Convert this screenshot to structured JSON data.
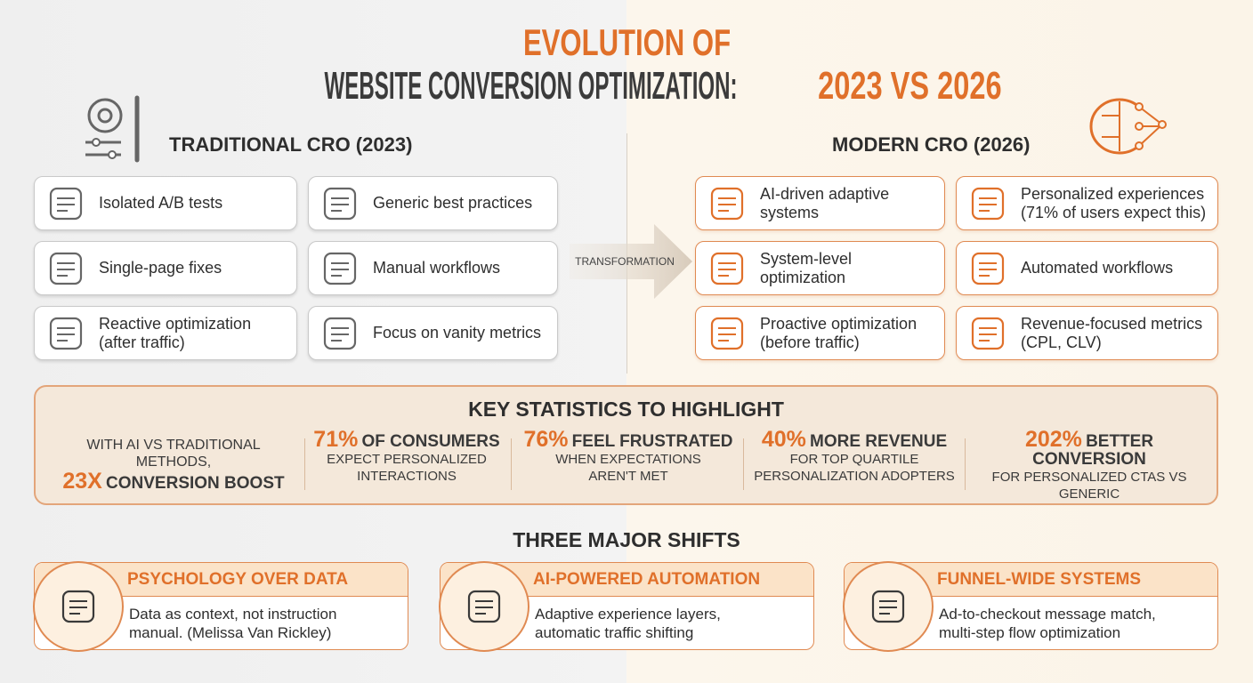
{
  "header": {
    "title_line1": "EVOLUTION OF",
    "title_line2": "WEBSITE CONVERSION OPTIMIZATION:",
    "title_highlight": "2023 VS 2026"
  },
  "traditional": {
    "heading": "TRADITIONAL CRO (2023)",
    "items": [
      {
        "lines": [
          "Isolated A/B tests"
        ]
      },
      {
        "lines": [
          "Generic best practices"
        ]
      },
      {
        "lines": [
          "Single-page fixes"
        ]
      },
      {
        "lines": [
          "Manual workflows"
        ]
      },
      {
        "lines": [
          "Reactive optimization",
          "(after traffic)"
        ]
      },
      {
        "lines": [
          "Focus on vanity metrics"
        ]
      }
    ]
  },
  "transformation": "TRANSFORMATION",
  "modern": {
    "heading": "MODERN CRO (2026)",
    "items": [
      {
        "lines": [
          "AI-driven adaptive",
          "systems"
        ]
      },
      {
        "lines": [
          "Personalized experiences",
          "(71% of users expect this)"
        ]
      },
      {
        "lines": [
          "System-level",
          "optimization"
        ]
      },
      {
        "lines": [
          "Automated workflows"
        ]
      },
      {
        "lines": [
          "Proactive optimization",
          "(before traffic)"
        ]
      },
      {
        "lines": [
          "Revenue-focused metrics",
          "(CPL, CLV)"
        ]
      }
    ]
  },
  "statistics": {
    "heading": "KEY STATISTICS TO HIGHLIGHT",
    "items": [
      {
        "pre": "WITH AI VS TRADITIONAL METHODS,",
        "highlight": "23X",
        "headline": "CONVERSION BOOST",
        "detail": []
      },
      {
        "highlight": "71%",
        "headline": "OF CONSUMERS",
        "detail": [
          "EXPECT PERSONALIZED",
          "INTERACTIONS"
        ]
      },
      {
        "highlight": "76%",
        "headline": "FEEL FRUSTRATED",
        "detail": [
          "WHEN EXPECTATIONS",
          "AREN'T MET"
        ]
      },
      {
        "highlight": "40%",
        "headline": "MORE REVENUE",
        "detail": [
          "FOR TOP QUARTILE",
          "PERSONALIZATION ADOPTERS"
        ]
      },
      {
        "highlight": "202%",
        "headline": "BETTER CONVERSION",
        "detail": [
          "FOR PERSONALIZED CTAS VS",
          "GENERIC"
        ]
      }
    ]
  },
  "shifts": {
    "heading": "THREE MAJOR SHIFTS",
    "items": [
      {
        "title": "PSYCHOLOGY OVER DATA",
        "lines": [
          "Data as context, not instruction",
          "manual. (Melissa Van Rickley)"
        ]
      },
      {
        "title": "AI-POWERED AUTOMATION",
        "lines": [
          "Adaptive experience layers,",
          "automatic traffic shifting"
        ]
      },
      {
        "title": "FUNNEL-WIDE SYSTEMS",
        "lines": [
          "Ad-to-checkout message match,",
          "multi-step flow optimization"
        ]
      }
    ]
  }
}
